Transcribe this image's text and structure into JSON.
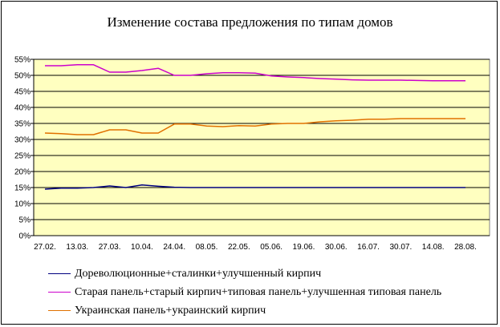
{
  "chart_data": {
    "type": "line",
    "title": "Изменение состава предложения по типам домов",
    "xlabel": "",
    "ylabel": "",
    "ylim": [
      0,
      55
    ],
    "yticks": [
      "0%",
      "5%",
      "10%",
      "15%",
      "20%",
      "25%",
      "30%",
      "35%",
      "40%",
      "45%",
      "50%",
      "55%"
    ],
    "categories": [
      "27.02.",
      "13.03.",
      "27.03.",
      "10.04.",
      "24.04.",
      "08.05.",
      "22.05.",
      "05.06.",
      "19.06.",
      "30.06.",
      "16.07.",
      "30.07.",
      "14.08.",
      "28.08."
    ],
    "grid": true,
    "legend_placement": "bottom",
    "plot_background": "#FFFFC0",
    "series": [
      {
        "name": "Дореволюционные+сталинки+улучшенный кирпич",
        "color": "#000080",
        "x": [
          0,
          0.5,
          1,
          1.5,
          2,
          2.5,
          3,
          3.5,
          4,
          4.5,
          5,
          5.5,
          6,
          6.5,
          7,
          7.5,
          8,
          8.5,
          9,
          9.5,
          10,
          10.5,
          11,
          11.5,
          12,
          12.5,
          13
        ],
        "values": [
          14.5,
          14.8,
          14.8,
          15.0,
          15.5,
          15.0,
          15.8,
          15.4,
          15.1,
          15.0,
          15.0,
          15.0,
          15.0,
          15.0,
          15.0,
          15.0,
          15.0,
          15.0,
          15.0,
          15.0,
          15.0,
          15.0,
          15.0,
          15.0,
          15.0,
          15.0,
          15.0
        ]
      },
      {
        "name": "Старая панель+старый кирпич+типовая панель+улучшенная типовая панель",
        "color": "#CC00CC",
        "x": [
          0,
          0.5,
          1,
          1.5,
          2,
          2.5,
          3,
          3.5,
          4,
          4.5,
          5,
          5.5,
          6,
          6.5,
          7,
          7.5,
          8,
          8.5,
          9,
          9.5,
          10,
          10.5,
          11,
          11.5,
          12,
          12.5,
          13
        ],
        "values": [
          53.0,
          53.0,
          53.3,
          53.3,
          51.0,
          51.0,
          51.5,
          52.2,
          50.0,
          50.0,
          50.5,
          50.8,
          50.8,
          50.7,
          49.8,
          49.5,
          49.3,
          49.0,
          48.8,
          48.6,
          48.5,
          48.5,
          48.5,
          48.4,
          48.3,
          48.3,
          48.3
        ]
      },
      {
        "name": "Украинская панель+украинский кирпич",
        "color": "#E07000",
        "x": [
          0,
          0.5,
          1,
          1.5,
          2,
          2.5,
          3,
          3.5,
          4,
          4.5,
          5,
          5.5,
          6,
          6.5,
          7,
          7.5,
          8,
          8.5,
          9,
          9.5,
          10,
          10.5,
          11,
          11.5,
          12,
          12.5,
          13
        ],
        "values": [
          32.0,
          31.8,
          31.5,
          31.5,
          33.0,
          33.0,
          32.0,
          32.0,
          34.8,
          34.8,
          34.2,
          34.0,
          34.3,
          34.2,
          34.8,
          35.0,
          35.0,
          35.5,
          35.8,
          36.0,
          36.3,
          36.3,
          36.5,
          36.5,
          36.5,
          36.5,
          36.5
        ]
      }
    ]
  }
}
